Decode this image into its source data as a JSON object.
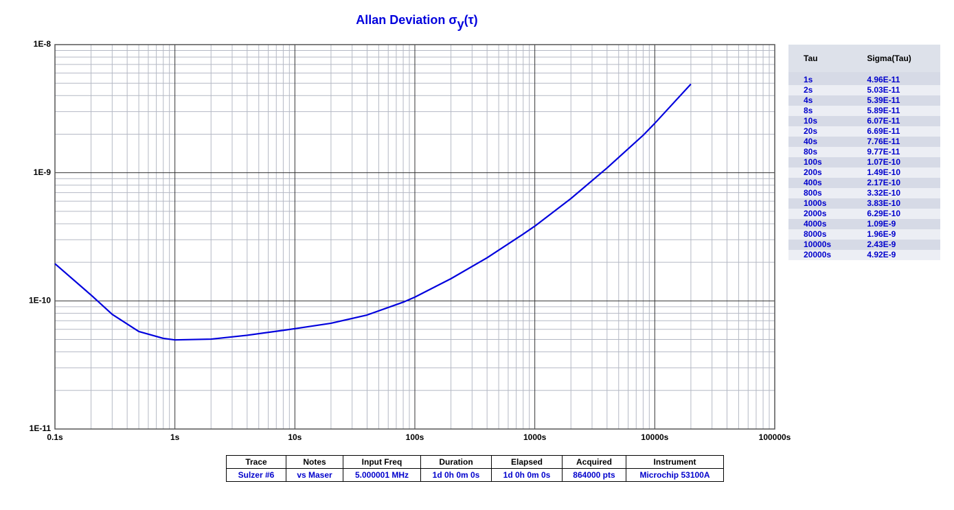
{
  "chart_data": {
    "type": "line",
    "title": "Allan Deviation σ",
    "title_subscript": "y",
    "title_suffix": "(τ)",
    "title_color": "#0000dd",
    "x_log": true,
    "y_log": true,
    "grid": true,
    "minor_grid": true,
    "xlim": [
      0.1,
      100000
    ],
    "ylim": [
      1e-11,
      1e-08
    ],
    "xticks": [
      {
        "value": 0.1,
        "label": "0.1s"
      },
      {
        "value": 1,
        "label": "1s"
      },
      {
        "value": 10,
        "label": "10s"
      },
      {
        "value": 100,
        "label": "100s"
      },
      {
        "value": 1000,
        "label": "1000s"
      },
      {
        "value": 10000,
        "label": "10000s"
      },
      {
        "value": 100000,
        "label": "100000s"
      }
    ],
    "yticks": [
      {
        "value": 1e-11,
        "label": "1E-11"
      },
      {
        "value": 1e-10,
        "label": "1E-10"
      },
      {
        "value": 1e-09,
        "label": "1E-9"
      },
      {
        "value": 1e-08,
        "label": "1E-8"
      }
    ],
    "series": [
      {
        "color": "#0000dd",
        "x": [
          0.1,
          0.2,
          0.3,
          0.5,
          0.8,
          1,
          2,
          4,
          8,
          10,
          20,
          40,
          80,
          100,
          200,
          400,
          800,
          1000,
          2000,
          4000,
          8000,
          10000,
          20000
        ],
        "values": [
          1.95e-10,
          1.11e-10,
          7.85e-11,
          5.77e-11,
          5.1e-11,
          4.96e-11,
          5.03e-11,
          5.39e-11,
          5.89e-11,
          6.07e-11,
          6.69e-11,
          7.76e-11,
          9.77e-11,
          1.07e-10,
          1.49e-10,
          2.17e-10,
          3.32e-10,
          3.83e-10,
          6.29e-10,
          1.09e-09,
          1.96e-09,
          2.43e-09,
          4.92e-09
        ]
      }
    ]
  },
  "side_table": {
    "header": [
      "Tau",
      "Sigma(Tau)"
    ],
    "rows": [
      [
        "1s",
        "4.96E-11"
      ],
      [
        "2s",
        "5.03E-11"
      ],
      [
        "4s",
        "5.39E-11"
      ],
      [
        "8s",
        "5.89E-11"
      ],
      [
        "10s",
        "6.07E-11"
      ],
      [
        "20s",
        "6.69E-11"
      ],
      [
        "40s",
        "7.76E-11"
      ],
      [
        "80s",
        "9.77E-11"
      ],
      [
        "100s",
        "1.07E-10"
      ],
      [
        "200s",
        "1.49E-10"
      ],
      [
        "400s",
        "2.17E-10"
      ],
      [
        "800s",
        "3.32E-10"
      ],
      [
        "1000s",
        "3.83E-10"
      ],
      [
        "2000s",
        "6.29E-10"
      ],
      [
        "4000s",
        "1.09E-9"
      ],
      [
        "8000s",
        "1.96E-9"
      ],
      [
        "10000s",
        "2.43E-9"
      ],
      [
        "20000s",
        "4.92E-9"
      ]
    ]
  },
  "info_table": {
    "header": [
      "Trace",
      "Notes",
      "Input Freq",
      "Duration",
      "Elapsed",
      "Acquired",
      "Instrument"
    ],
    "rows": [
      [
        "Sulzer #6",
        "vs Maser",
        "5.000001 MHz",
        "1d 0h 0m 0s",
        "1d 0h 0m 0s",
        "864000 pts",
        "Microchip 53100A"
      ]
    ]
  }
}
